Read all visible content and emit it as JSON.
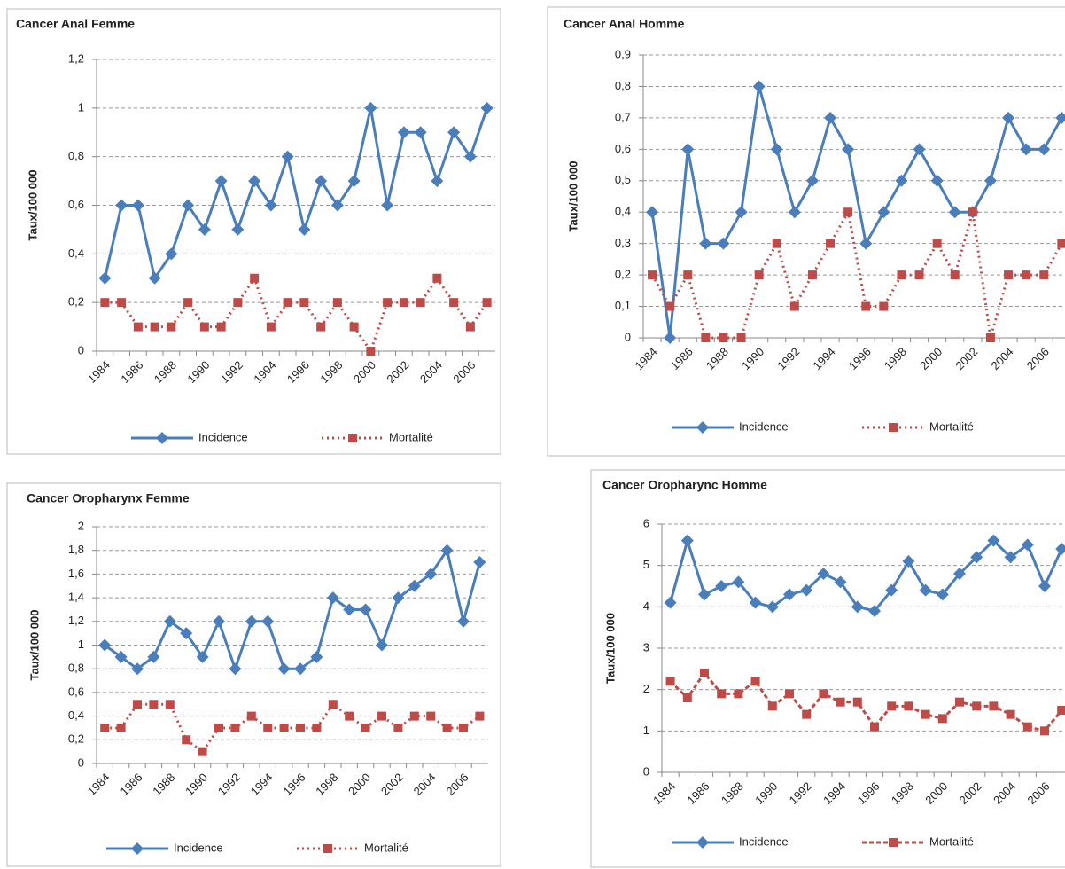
{
  "chart_data": [
    {
      "type": "line",
      "title": "Cancer Anal Femme",
      "y_label": "Taux/100 000",
      "categories": [
        "1984",
        null,
        "1986",
        null,
        "1988",
        null,
        "1990",
        null,
        "1992",
        null,
        "1994",
        null,
        "1996",
        null,
        "1998",
        null,
        "2000",
        null,
        "2002",
        null,
        "2004",
        null,
        "2006",
        null
      ],
      "series": [
        {
          "name": "Incidence",
          "color": "#4a7ebb",
          "marker": "diamond",
          "dash": "solid",
          "values": [
            0.3,
            0.6,
            0.6,
            0.3,
            0.4,
            0.6,
            0.5,
            0.7,
            0.5,
            0.7,
            0.6,
            0.8,
            0.5,
            0.7,
            0.6,
            0.7,
            1,
            0.6,
            0.9,
            0.9,
            0.7,
            0.9,
            0.8,
            1
          ]
        },
        {
          "name": "Mortalité",
          "color": "#be4b48",
          "marker": "square",
          "dash": "dot",
          "values": [
            0.2,
            0.2,
            0.1,
            0.1,
            0.1,
            0.2,
            0.1,
            0.1,
            0.2,
            0.3,
            0.1,
            0.2,
            0.2,
            0.1,
            0.2,
            0.1,
            0,
            0.2,
            0.2,
            0.2,
            0.3,
            0.2,
            0.1,
            0.2
          ]
        }
      ],
      "ylim": [
        0,
        1.2
      ],
      "yticks": [
        0,
        {
          "value": 0.2,
          "label": "0,2"
        },
        {
          "value": 0.4,
          "label": "0,4"
        },
        {
          "value": 0.6,
          "label": "0,6"
        },
        {
          "value": 0.8,
          "label": "0,8"
        },
        1,
        {
          "value": 1.2,
          "label": "1,2"
        }
      ],
      "grid": true,
      "legend": "bottom"
    },
    {
      "type": "line",
      "title": "Cancer Anal Homme",
      "y_label": "Taux/100 000",
      "categories": [
        "1984",
        null,
        "1986",
        null,
        "1988",
        null,
        "1990",
        null,
        "1992",
        null,
        "1994",
        null,
        "1996",
        null,
        "1998",
        null,
        "2000",
        null,
        "2002",
        null,
        "2004",
        null,
        "2006",
        null
      ],
      "series": [
        {
          "name": "Incidence",
          "color": "#4a7ebb",
          "marker": "diamond",
          "dash": "solid",
          "values": [
            0.4,
            0,
            0.6,
            0.3,
            0.3,
            0.4,
            0.8,
            0.6,
            0.4,
            0.5,
            0.7,
            0.6,
            0.3,
            0.4,
            0.5,
            0.6,
            0.5,
            0.4,
            0.4,
            0.5,
            0.7,
            0.6,
            0.6,
            0.7
          ]
        },
        {
          "name": "Mortalité",
          "color": "#be4b48",
          "marker": "square",
          "dash": "dot",
          "values": [
            0.2,
            0.1,
            0.2,
            0,
            0,
            0,
            0.2,
            0.3,
            0.1,
            0.2,
            0.3,
            0.4,
            0.1,
            0.1,
            0.2,
            0.2,
            0.3,
            0.2,
            0.4,
            0,
            0.2,
            0.2,
            0.2,
            0.3
          ]
        }
      ],
      "ylim": [
        0,
        0.9
      ],
      "yticks": [
        0,
        {
          "value": 0.1,
          "label": "0,1"
        },
        {
          "value": 0.2,
          "label": "0,2"
        },
        {
          "value": 0.3,
          "label": "0,3"
        },
        {
          "value": 0.4,
          "label": "0,4"
        },
        {
          "value": 0.5,
          "label": "0,5"
        },
        {
          "value": 0.6,
          "label": "0,6"
        },
        {
          "value": 0.7,
          "label": "0,7"
        },
        {
          "value": 0.8,
          "label": "0,8"
        },
        {
          "value": 0.9,
          "label": "0,9"
        }
      ],
      "grid": true,
      "legend": "bottom"
    },
    {
      "type": "line",
      "title": "Cancer Oropharynx Femme",
      "y_label": "Taux/100 000",
      "categories": [
        "1984",
        null,
        "1986",
        null,
        "1988",
        null,
        "1990",
        null,
        "1992",
        null,
        "1994",
        null,
        "1996",
        null,
        "1998",
        null,
        "2000",
        null,
        "2002",
        null,
        "2004",
        null,
        "2006",
        null
      ],
      "series": [
        {
          "name": "Incidence",
          "color": "#4a7ebb",
          "marker": "diamond",
          "dash": "solid",
          "values": [
            1.0,
            0.9,
            0.8,
            0.9,
            1.2,
            1.1,
            0.9,
            1.2,
            0.8,
            1.2,
            1.2,
            0.8,
            0.8,
            0.9,
            1.4,
            1.3,
            1.3,
            1.0,
            1.4,
            1.5,
            1.6,
            1.8,
            1.2,
            1.7
          ]
        },
        {
          "name": "Mortalité",
          "color": "#be4b48",
          "marker": "square",
          "dash": "dot",
          "values": [
            0.3,
            0.3,
            0.5,
            0.5,
            0.5,
            0.2,
            0.1,
            0.3,
            0.3,
            0.4,
            0.3,
            0.3,
            0.3,
            0.3,
            0.5,
            0.4,
            0.3,
            0.4,
            0.3,
            0.4,
            0.4,
            0.3,
            0.3,
            0.4
          ]
        }
      ],
      "ylim": [
        0,
        2
      ],
      "yticks": [
        0,
        {
          "value": 0.2,
          "label": "0,2"
        },
        {
          "value": 0.4,
          "label": "0,4"
        },
        {
          "value": 0.6,
          "label": "0,6"
        },
        {
          "value": 0.8,
          "label": "0,8"
        },
        1,
        {
          "value": 1.2,
          "label": "1,2"
        },
        {
          "value": 1.4,
          "label": "1,4"
        },
        {
          "value": 1.6,
          "label": "1,6"
        },
        {
          "value": 1.8,
          "label": "1,8"
        },
        2
      ],
      "grid": true,
      "legend": "bottom"
    },
    {
      "type": "line",
      "title": "Cancer Oropharync Homme",
      "y_label": "Taux/100 000",
      "categories": [
        "1984",
        null,
        "1986",
        null,
        "1988",
        null,
        "1990",
        null,
        "1992",
        null,
        "1994",
        null,
        "1996",
        null,
        "1998",
        null,
        "2000",
        null,
        "2002",
        null,
        "2004",
        null,
        "2006",
        null
      ],
      "series": [
        {
          "name": "Incidence",
          "color": "#4a7ebb",
          "marker": "diamond",
          "dash": "solid",
          "values": [
            4.1,
            5.6,
            4.3,
            4.5,
            4.6,
            4.1,
            4.0,
            4.3,
            4.4,
            4.8,
            4.6,
            4.0,
            3.9,
            4.4,
            5.1,
            4.4,
            4.3,
            4.8,
            5.2,
            5.6,
            5.2,
            5.5,
            4.5,
            5.4
          ]
        },
        {
          "name": "Mortalité",
          "color": "#be4b48",
          "marker": "square",
          "dash": "dash",
          "values": [
            2.2,
            1.8,
            2.4,
            1.9,
            1.9,
            2.2,
            1.6,
            1.9,
            1.4,
            1.9,
            1.7,
            1.7,
            1.1,
            1.6,
            1.6,
            1.4,
            1.3,
            1.7,
            1.6,
            1.6,
            1.4,
            1.1,
            1.0,
            1.5
          ]
        }
      ],
      "ylim": [
        0,
        6
      ],
      "yticks": [
        0,
        1,
        2,
        3,
        4,
        5,
        6
      ],
      "grid": true,
      "legend": "bottom"
    }
  ]
}
